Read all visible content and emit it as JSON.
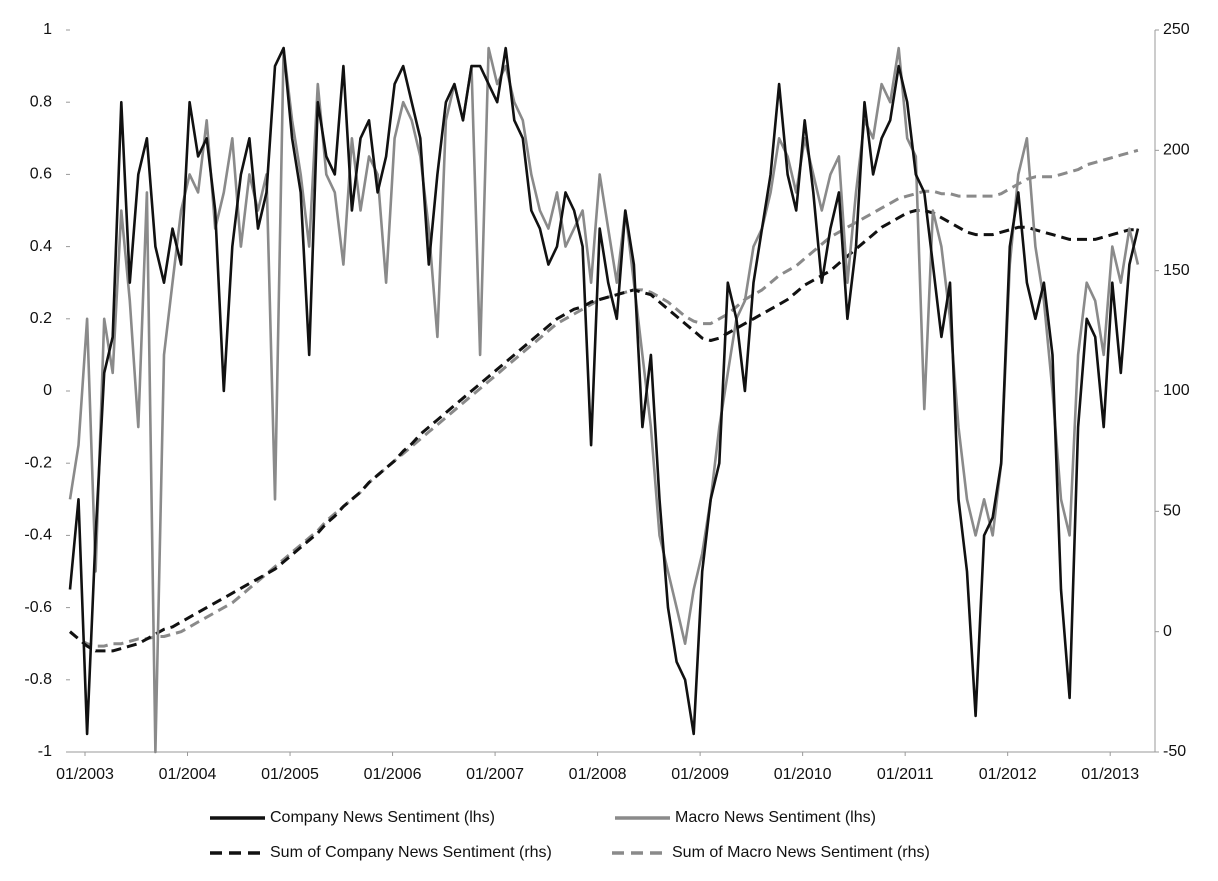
{
  "chart_data": {
    "type": "line",
    "x": [
      "01/2003",
      "02/2003",
      "03/2003",
      "04/2003",
      "05/2003",
      "06/2003",
      "07/2003",
      "08/2003",
      "09/2003",
      "10/2003",
      "11/2003",
      "12/2003",
      "01/2004",
      "02/2004",
      "03/2004",
      "04/2004",
      "05/2004",
      "06/2004",
      "07/2004",
      "08/2004",
      "09/2004",
      "10/2004",
      "11/2004",
      "12/2004",
      "01/2005",
      "02/2005",
      "03/2005",
      "04/2005",
      "05/2005",
      "06/2005",
      "07/2005",
      "08/2005",
      "09/2005",
      "10/2005",
      "11/2005",
      "12/2005",
      "01/2006",
      "02/2006",
      "03/2006",
      "04/2006",
      "05/2006",
      "06/2006",
      "07/2006",
      "08/2006",
      "09/2006",
      "10/2006",
      "11/2006",
      "12/2006",
      "01/2007",
      "02/2007",
      "03/2007",
      "04/2007",
      "05/2007",
      "06/2007",
      "07/2007",
      "08/2007",
      "09/2007",
      "10/2007",
      "11/2007",
      "12/2007",
      "01/2008",
      "02/2008",
      "03/2008",
      "04/2008",
      "05/2008",
      "06/2008",
      "07/2008",
      "08/2008",
      "09/2008",
      "10/2008",
      "11/2008",
      "12/2008",
      "01/2009",
      "02/2009",
      "03/2009",
      "04/2009",
      "05/2009",
      "06/2009",
      "07/2009",
      "08/2009",
      "09/2009",
      "10/2009",
      "11/2009",
      "12/2009",
      "01/2010",
      "02/2010",
      "03/2010",
      "04/2010",
      "05/2010",
      "06/2010",
      "07/2010",
      "08/2010",
      "09/2010",
      "10/2010",
      "11/2010",
      "12/2010",
      "01/2011",
      "02/2011",
      "03/2011",
      "04/2011",
      "05/2011",
      "06/2011",
      "07/2011",
      "08/2011",
      "09/2011",
      "10/2011",
      "11/2011",
      "12/2011",
      "01/2012",
      "02/2012",
      "03/2012",
      "04/2012",
      "05/2012",
      "06/2012",
      "07/2012",
      "08/2012",
      "09/2012",
      "10/2012",
      "11/2012",
      "12/2012",
      "01/2013",
      "02/2013",
      "03/2013",
      "04/2013",
      "05/2013",
      "06/2013"
    ],
    "xlim": [
      "01/2003",
      "08/2013"
    ],
    "xticks": [
      "01/2003",
      "01/2004",
      "01/2005",
      "01/2006",
      "01/2007",
      "01/2008",
      "01/2009",
      "01/2010",
      "01/2011",
      "01/2012",
      "01/2013"
    ],
    "ylim": [
      -1,
      1
    ],
    "yticks": [
      -1,
      -0.8,
      -0.6,
      -0.4,
      -0.2,
      0,
      0.2,
      0.4,
      0.6,
      0.8,
      1
    ],
    "y2lim": [
      -50,
      250
    ],
    "y2ticks": [
      -50,
      0,
      50,
      100,
      150,
      200,
      250
    ],
    "legend": "bottom",
    "series": [
      {
        "name": "Company News Sentiment (lhs)",
        "color": "#111111",
        "dashed": false,
        "values": [
          -0.55,
          -0.3,
          -0.95,
          -0.4,
          0.05,
          0.15,
          0.8,
          0.3,
          0.6,
          0.7,
          0.4,
          0.3,
          0.45,
          0.35,
          0.8,
          0.65,
          0.7,
          0.5,
          0.0,
          0.4,
          0.6,
          0.7,
          0.45,
          0.55,
          0.9,
          0.95,
          0.7,
          0.55,
          0.1,
          0.8,
          0.65,
          0.6,
          0.9,
          0.5,
          0.7,
          0.75,
          0.55,
          0.65,
          0.85,
          0.9,
          0.8,
          0.7,
          0.35,
          0.6,
          0.8,
          0.85,
          0.75,
          0.9,
          0.9,
          0.85,
          0.8,
          0.95,
          0.75,
          0.7,
          0.5,
          0.45,
          0.35,
          0.4,
          0.55,
          0.5,
          0.4,
          -0.15,
          0.45,
          0.3,
          0.2,
          0.5,
          0.35,
          -0.1,
          0.1,
          -0.3,
          -0.6,
          -0.75,
          -0.8,
          -0.95,
          -0.5,
          -0.3,
          -0.2,
          0.3,
          0.2,
          0.0,
          0.3,
          0.45,
          0.6,
          0.85,
          0.6,
          0.5,
          0.75,
          0.55,
          0.3,
          0.45,
          0.55,
          0.2,
          0.4,
          0.8,
          0.6,
          0.7,
          0.75,
          0.9,
          0.8,
          0.6,
          0.55,
          0.35,
          0.15,
          0.3,
          -0.3,
          -0.5,
          -0.9,
          -0.4,
          -0.35,
          -0.2,
          0.4,
          0.55,
          0.3,
          0.2,
          0.3,
          0.1,
          -0.55,
          -0.85,
          -0.1,
          0.2,
          0.15,
          -0.1,
          0.3,
          0.05,
          0.35,
          0.45
        ]
      },
      {
        "name": "Macro News Sentiment (lhs)",
        "color": "#8a8a8a",
        "dashed": false,
        "values": [
          -0.3,
          -0.15,
          0.2,
          -0.5,
          0.2,
          0.05,
          0.5,
          0.25,
          -0.1,
          0.55,
          -1,
          0.1,
          0.3,
          0.5,
          0.6,
          0.55,
          0.75,
          0.45,
          0.55,
          0.7,
          0.4,
          0.6,
          0.5,
          0.6,
          -0.3,
          0.95,
          0.75,
          0.6,
          0.4,
          0.85,
          0.6,
          0.55,
          0.35,
          0.7,
          0.5,
          0.65,
          0.6,
          0.3,
          0.7,
          0.8,
          0.75,
          0.65,
          0.45,
          0.15,
          0.75,
          0.85,
          0.75,
          0.9,
          0.1,
          0.95,
          0.85,
          0.9,
          0.8,
          0.75,
          0.6,
          0.5,
          0.45,
          0.55,
          0.4,
          0.45,
          0.5,
          0.3,
          0.6,
          0.45,
          0.3,
          0.5,
          0.3,
          0.1,
          -0.1,
          -0.4,
          -0.5,
          -0.6,
          -0.7,
          -0.55,
          -0.45,
          -0.3,
          -0.1,
          0.05,
          0.2,
          0.25,
          0.4,
          0.45,
          0.55,
          0.7,
          0.65,
          0.55,
          0.7,
          0.6,
          0.5,
          0.6,
          0.65,
          0.3,
          0.55,
          0.75,
          0.7,
          0.85,
          0.8,
          0.95,
          0.7,
          0.65,
          -0.05,
          0.5,
          0.4,
          0.2,
          -0.1,
          -0.3,
          -0.4,
          -0.3,
          -0.4,
          -0.2,
          0.35,
          0.6,
          0.7,
          0.4,
          0.25,
          0.0,
          -0.3,
          -0.4,
          0.1,
          0.3,
          0.25,
          0.1,
          0.4,
          0.3,
          0.45,
          0.35
        ]
      },
      {
        "name": "Sum of Company News Sentiment (rhs)",
        "color": "#111111",
        "dashed": true,
        "axis": "y2",
        "values": [
          0,
          -3,
          -6,
          -8,
          -8,
          -8,
          -7,
          -6,
          -5,
          -3,
          -1,
          1,
          2,
          4,
          6,
          8,
          10,
          12,
          14,
          16,
          18,
          20,
          22,
          24,
          26,
          29,
          32,
          35,
          38,
          41,
          45,
          48,
          52,
          55,
          58,
          62,
          65,
          68,
          71,
          75,
          78,
          82,
          85,
          88,
          91,
          94,
          97,
          100,
          103,
          106,
          109,
          112,
          115,
          118,
          121,
          124,
          127,
          130,
          132,
          134,
          135,
          137,
          138,
          139,
          140,
          141,
          142,
          141,
          140,
          137,
          134,
          131,
          128,
          125,
          122,
          121,
          122,
          124,
          126,
          128,
          130,
          132,
          134,
          136,
          138,
          141,
          144,
          146,
          148,
          150,
          153,
          156,
          159,
          162,
          165,
          168,
          170,
          172,
          174,
          175,
          175,
          174,
          172,
          170,
          168,
          166,
          165,
          165,
          165,
          166,
          167,
          168,
          168,
          167,
          166,
          165,
          164,
          163,
          163,
          163,
          163,
          164,
          165,
          166,
          167,
          167
        ]
      },
      {
        "name": "Sum of Macro News Sentiment (rhs)",
        "color": "#8a8a8a",
        "dashed": true,
        "axis": "y2",
        "values": [
          0,
          -3,
          -5,
          -6,
          -6,
          -5,
          -5,
          -4,
          -3,
          -3,
          -2,
          -2,
          -1,
          0,
          2,
          4,
          6,
          8,
          10,
          12,
          15,
          18,
          21,
          24,
          27,
          30,
          33,
          36,
          39,
          42,
          46,
          49,
          52,
          55,
          58,
          62,
          65,
          68,
          71,
          74,
          77,
          80,
          83,
          86,
          89,
          92,
          95,
          98,
          101,
          104,
          107,
          110,
          113,
          116,
          119,
          122,
          125,
          128,
          130,
          132,
          134,
          136,
          138,
          139,
          140,
          141,
          142,
          142,
          141,
          139,
          137,
          134,
          131,
          129,
          128,
          128,
          130,
          132,
          135,
          138,
          140,
          142,
          145,
          148,
          150,
          152,
          155,
          158,
          161,
          164,
          166,
          168,
          170,
          172,
          174,
          176,
          178,
          180,
          181,
          182,
          183,
          183,
          182,
          182,
          181,
          181,
          181,
          181,
          181,
          182,
          184,
          186,
          188,
          189,
          189,
          189,
          190,
          191,
          192,
          194,
          195,
          196,
          197,
          198,
          199,
          200
        ]
      }
    ]
  }
}
